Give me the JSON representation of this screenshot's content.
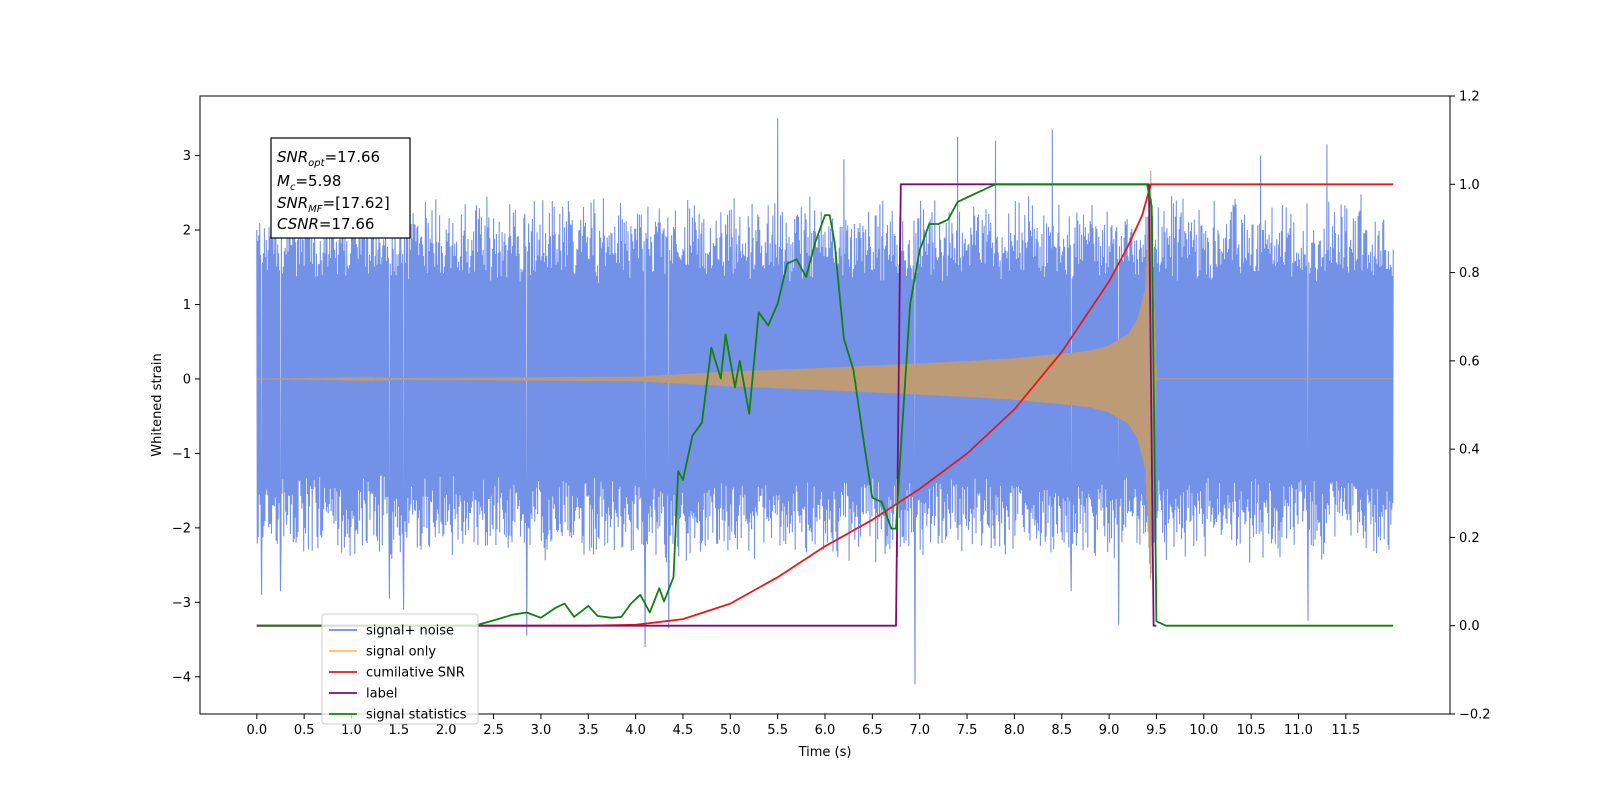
{
  "chart_data": {
    "type": "line",
    "title": "",
    "xlabel": "Time (s)",
    "ylabel_left": "Whitened strain",
    "ylabel_right": "",
    "xlim": [
      -0.6,
      12.6
    ],
    "ylim_left": [
      -4.5,
      3.8
    ],
    "ylim_right": [
      -0.2,
      1.2
    ],
    "x_ticks": [
      "0.0",
      "0.5",
      "1.0",
      "1.5",
      "2.0",
      "2.5",
      "3.0",
      "3.5",
      "4.0",
      "4.5",
      "5.0",
      "5.5",
      "6.0",
      "6.5",
      "7.0",
      "7.5",
      "8.0",
      "8.5",
      "9.0",
      "9.5",
      "10.0",
      "10.5",
      "11.0",
      "11.5"
    ],
    "y_ticks_left": [
      "3",
      "2",
      "1",
      "0",
      "−1",
      "−2",
      "−3",
      "−4"
    ],
    "y_ticks_right": [
      "1.2",
      "1.0",
      "0.8",
      "0.6",
      "0.4",
      "0.2",
      "0.0",
      "−0.2"
    ],
    "grid": false,
    "legend_position": "lower-left",
    "annotation": {
      "snr_opt": "=17.66",
      "mc": "=5.98",
      "snr_mf": "=[17.62]",
      "csnr": "=17.66"
    },
    "series": [
      {
        "name": "signal+ noise",
        "axis": "left",
        "color": "#6b8be6",
        "style": "noise band, amplitude approx ±2 with spikes up to 3.5 and down to −4.1",
        "x": [
          0.0,
          12.0
        ],
        "envelope_upper": [
          2.0,
          2.0
        ],
        "envelope_lower": [
          -2.0,
          -2.0
        ],
        "peaks": [
          [
            0.05,
            -2.9
          ],
          [
            0.25,
            -2.85
          ],
          [
            1.4,
            -2.95
          ],
          [
            1.55,
            -3.1
          ],
          [
            2.85,
            -3.45
          ],
          [
            4.1,
            -3.6
          ],
          [
            4.35,
            -3.35
          ],
          [
            5.5,
            3.5
          ],
          [
            6.2,
            2.95
          ],
          [
            6.95,
            -4.1
          ],
          [
            7.4,
            3.25
          ],
          [
            7.8,
            3.2
          ],
          [
            8.4,
            3.35
          ],
          [
            8.6,
            -2.85
          ],
          [
            9.1,
            -3.3
          ],
          [
            10.6,
            3.0
          ],
          [
            11.1,
            -3.25
          ],
          [
            11.3,
            3.15
          ]
        ]
      },
      {
        "name": "signal only",
        "axis": "left",
        "color": "#bd9b77",
        "style": "chirp with growing envelope, merger near t=9.45 s",
        "x": [
          0,
          4,
          5,
          6,
          6.5,
          7,
          7.5,
          8,
          8.5,
          8.8,
          9.0,
          9.2,
          9.3,
          9.38,
          9.44,
          9.5,
          12
        ],
        "envelope": [
          0.0,
          0.03,
          0.1,
          0.15,
          0.18,
          0.21,
          0.24,
          0.28,
          0.34,
          0.38,
          0.45,
          0.6,
          0.8,
          1.2,
          2.8,
          0.0,
          0.0
        ]
      },
      {
        "name": "cumilative SNR",
        "axis": "right",
        "color": "#e8191a",
        "x": [
          0,
          3.5,
          4.0,
          4.5,
          5.0,
          5.5,
          6.0,
          6.5,
          7.0,
          7.5,
          8.0,
          8.5,
          9.0,
          9.2,
          9.35,
          9.44,
          12.0
        ],
        "y": [
          0.0,
          0.0,
          0.002,
          0.015,
          0.05,
          0.11,
          0.18,
          0.24,
          0.31,
          0.39,
          0.49,
          0.62,
          0.78,
          0.86,
          0.93,
          1.0,
          1.0
        ]
      },
      {
        "name": "label",
        "axis": "right",
        "color": "#7b0d7b",
        "x": [
          0,
          6.75,
          6.8,
          9.42,
          9.47,
          9.5
        ],
        "y": [
          0.0,
          0.0,
          1.0,
          1.0,
          0.0,
          0.0
        ]
      },
      {
        "name": "signal statistics",
        "axis": "right",
        "color": "#118011",
        "x": [
          0,
          2.3,
          2.5,
          2.7,
          2.85,
          3.0,
          3.15,
          3.25,
          3.35,
          3.5,
          3.6,
          3.75,
          3.85,
          3.95,
          4.05,
          4.15,
          4.25,
          4.3,
          4.4,
          4.45,
          4.5,
          4.6,
          4.7,
          4.8,
          4.9,
          4.95,
          5.05,
          5.1,
          5.2,
          5.3,
          5.4,
          5.5,
          5.6,
          5.7,
          5.8,
          5.9,
          6.0,
          6.05,
          6.1,
          6.2,
          6.3,
          6.4,
          6.5,
          6.6,
          6.7,
          6.75,
          6.8,
          6.9,
          7.0,
          7.1,
          7.2,
          7.3,
          7.4,
          7.5,
          7.6,
          7.7,
          7.8,
          8.0,
          8.5,
          9.0,
          9.3,
          9.4,
          9.45,
          9.5,
          9.6,
          12.0
        ],
        "y": [
          0.0,
          0.0,
          0.012,
          0.025,
          0.03,
          0.018,
          0.04,
          0.05,
          0.02,
          0.045,
          0.022,
          0.018,
          0.02,
          0.05,
          0.07,
          0.03,
          0.085,
          0.055,
          0.11,
          0.35,
          0.33,
          0.43,
          0.46,
          0.63,
          0.56,
          0.66,
          0.54,
          0.6,
          0.48,
          0.71,
          0.68,
          0.73,
          0.82,
          0.83,
          0.79,
          0.87,
          0.93,
          0.93,
          0.87,
          0.65,
          0.58,
          0.43,
          0.29,
          0.28,
          0.22,
          0.22,
          0.4,
          0.73,
          0.85,
          0.91,
          0.91,
          0.92,
          0.96,
          0.97,
          0.98,
          0.99,
          1.0,
          1.0,
          1.0,
          1.0,
          1.0,
          1.0,
          0.95,
          0.01,
          0.0,
          0.0
        ]
      }
    ]
  }
}
